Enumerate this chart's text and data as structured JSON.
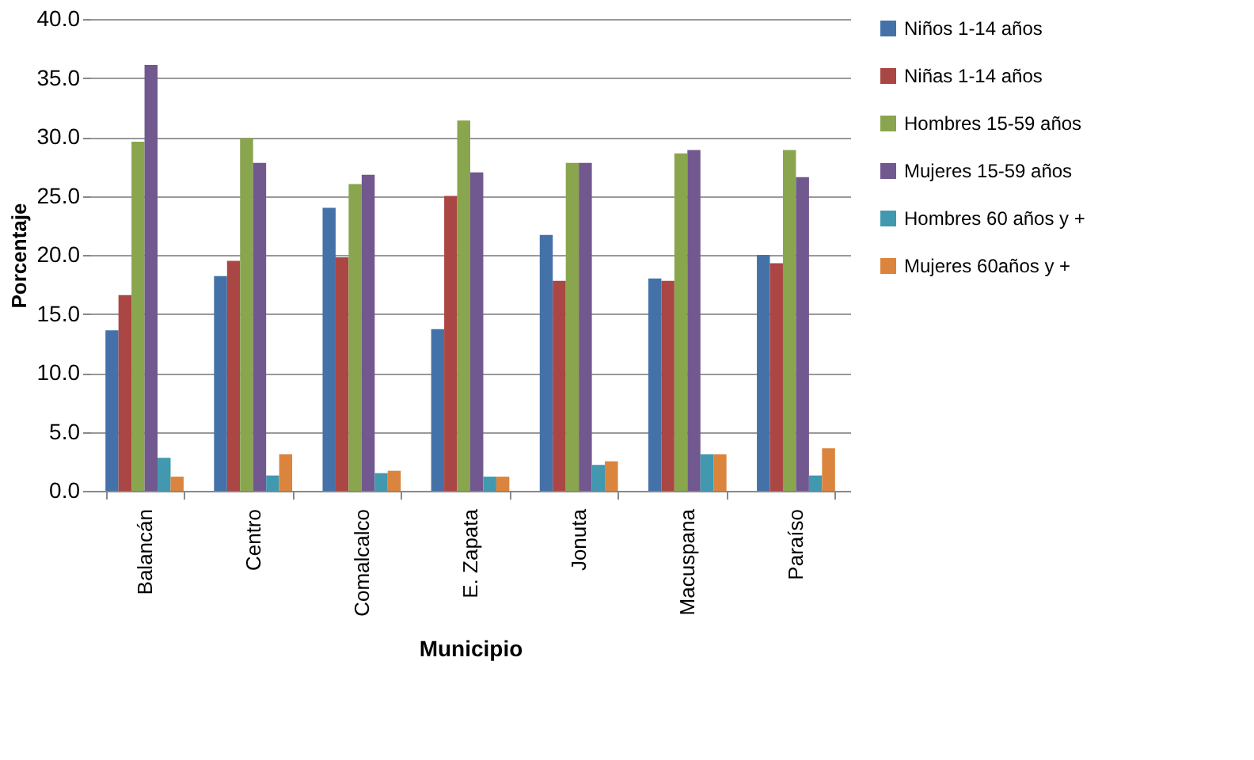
{
  "chart_data": {
    "type": "bar",
    "xlabel": "Municipio",
    "ylabel": "Porcentaje",
    "categories": [
      "Balancán",
      "Centro",
      "Comalcalco",
      "E. Zapata",
      "Jonuta",
      "Macuspana",
      "Paraíso"
    ],
    "series": [
      {
        "name": "Niños 1-14 años",
        "color": "#4472a8",
        "values": [
          13.6,
          18.2,
          24.0,
          13.7,
          21.7,
          18.0,
          20.0
        ]
      },
      {
        "name": "Niñas 1-14 años",
        "color": "#aa4643",
        "values": [
          16.6,
          19.5,
          19.8,
          25.0,
          17.8,
          17.8,
          19.3
        ]
      },
      {
        "name": "Hombres 15-59 años",
        "color": "#89a54e",
        "values": [
          29.6,
          29.9,
          26.0,
          31.4,
          27.8,
          28.6,
          28.9
        ]
      },
      {
        "name": "Mujeres 15-59 años",
        "color": "#71588f",
        "values": [
          36.1,
          27.8,
          26.8,
          27.0,
          27.8,
          28.9,
          26.6
        ]
      },
      {
        "name": "Hombres 60 años y +",
        "color": "#4198af",
        "values": [
          2.8,
          1.3,
          1.5,
          1.2,
          2.2,
          3.1,
          1.3
        ]
      },
      {
        "name": "Mujeres 60años y +",
        "color": "#db843d",
        "values": [
          1.2,
          3.1,
          1.7,
          1.2,
          2.5,
          3.1,
          3.6
        ]
      }
    ],
    "ylim": [
      0,
      40
    ],
    "yticks": [
      {
        "value": 0,
        "label": "0.0"
      },
      {
        "value": 5,
        "label": "5.0"
      },
      {
        "value": 10,
        "label": "10.0"
      },
      {
        "value": 15,
        "label": "15.0"
      },
      {
        "value": 20,
        "label": "20.0"
      },
      {
        "value": 25,
        "label": "25.0"
      },
      {
        "value": 30,
        "label": "30.0"
      },
      {
        "value": 35,
        "label": "35.0"
      },
      {
        "value": 40,
        "label": "40.0"
      }
    ],
    "grid": "y",
    "legend": "right"
  }
}
